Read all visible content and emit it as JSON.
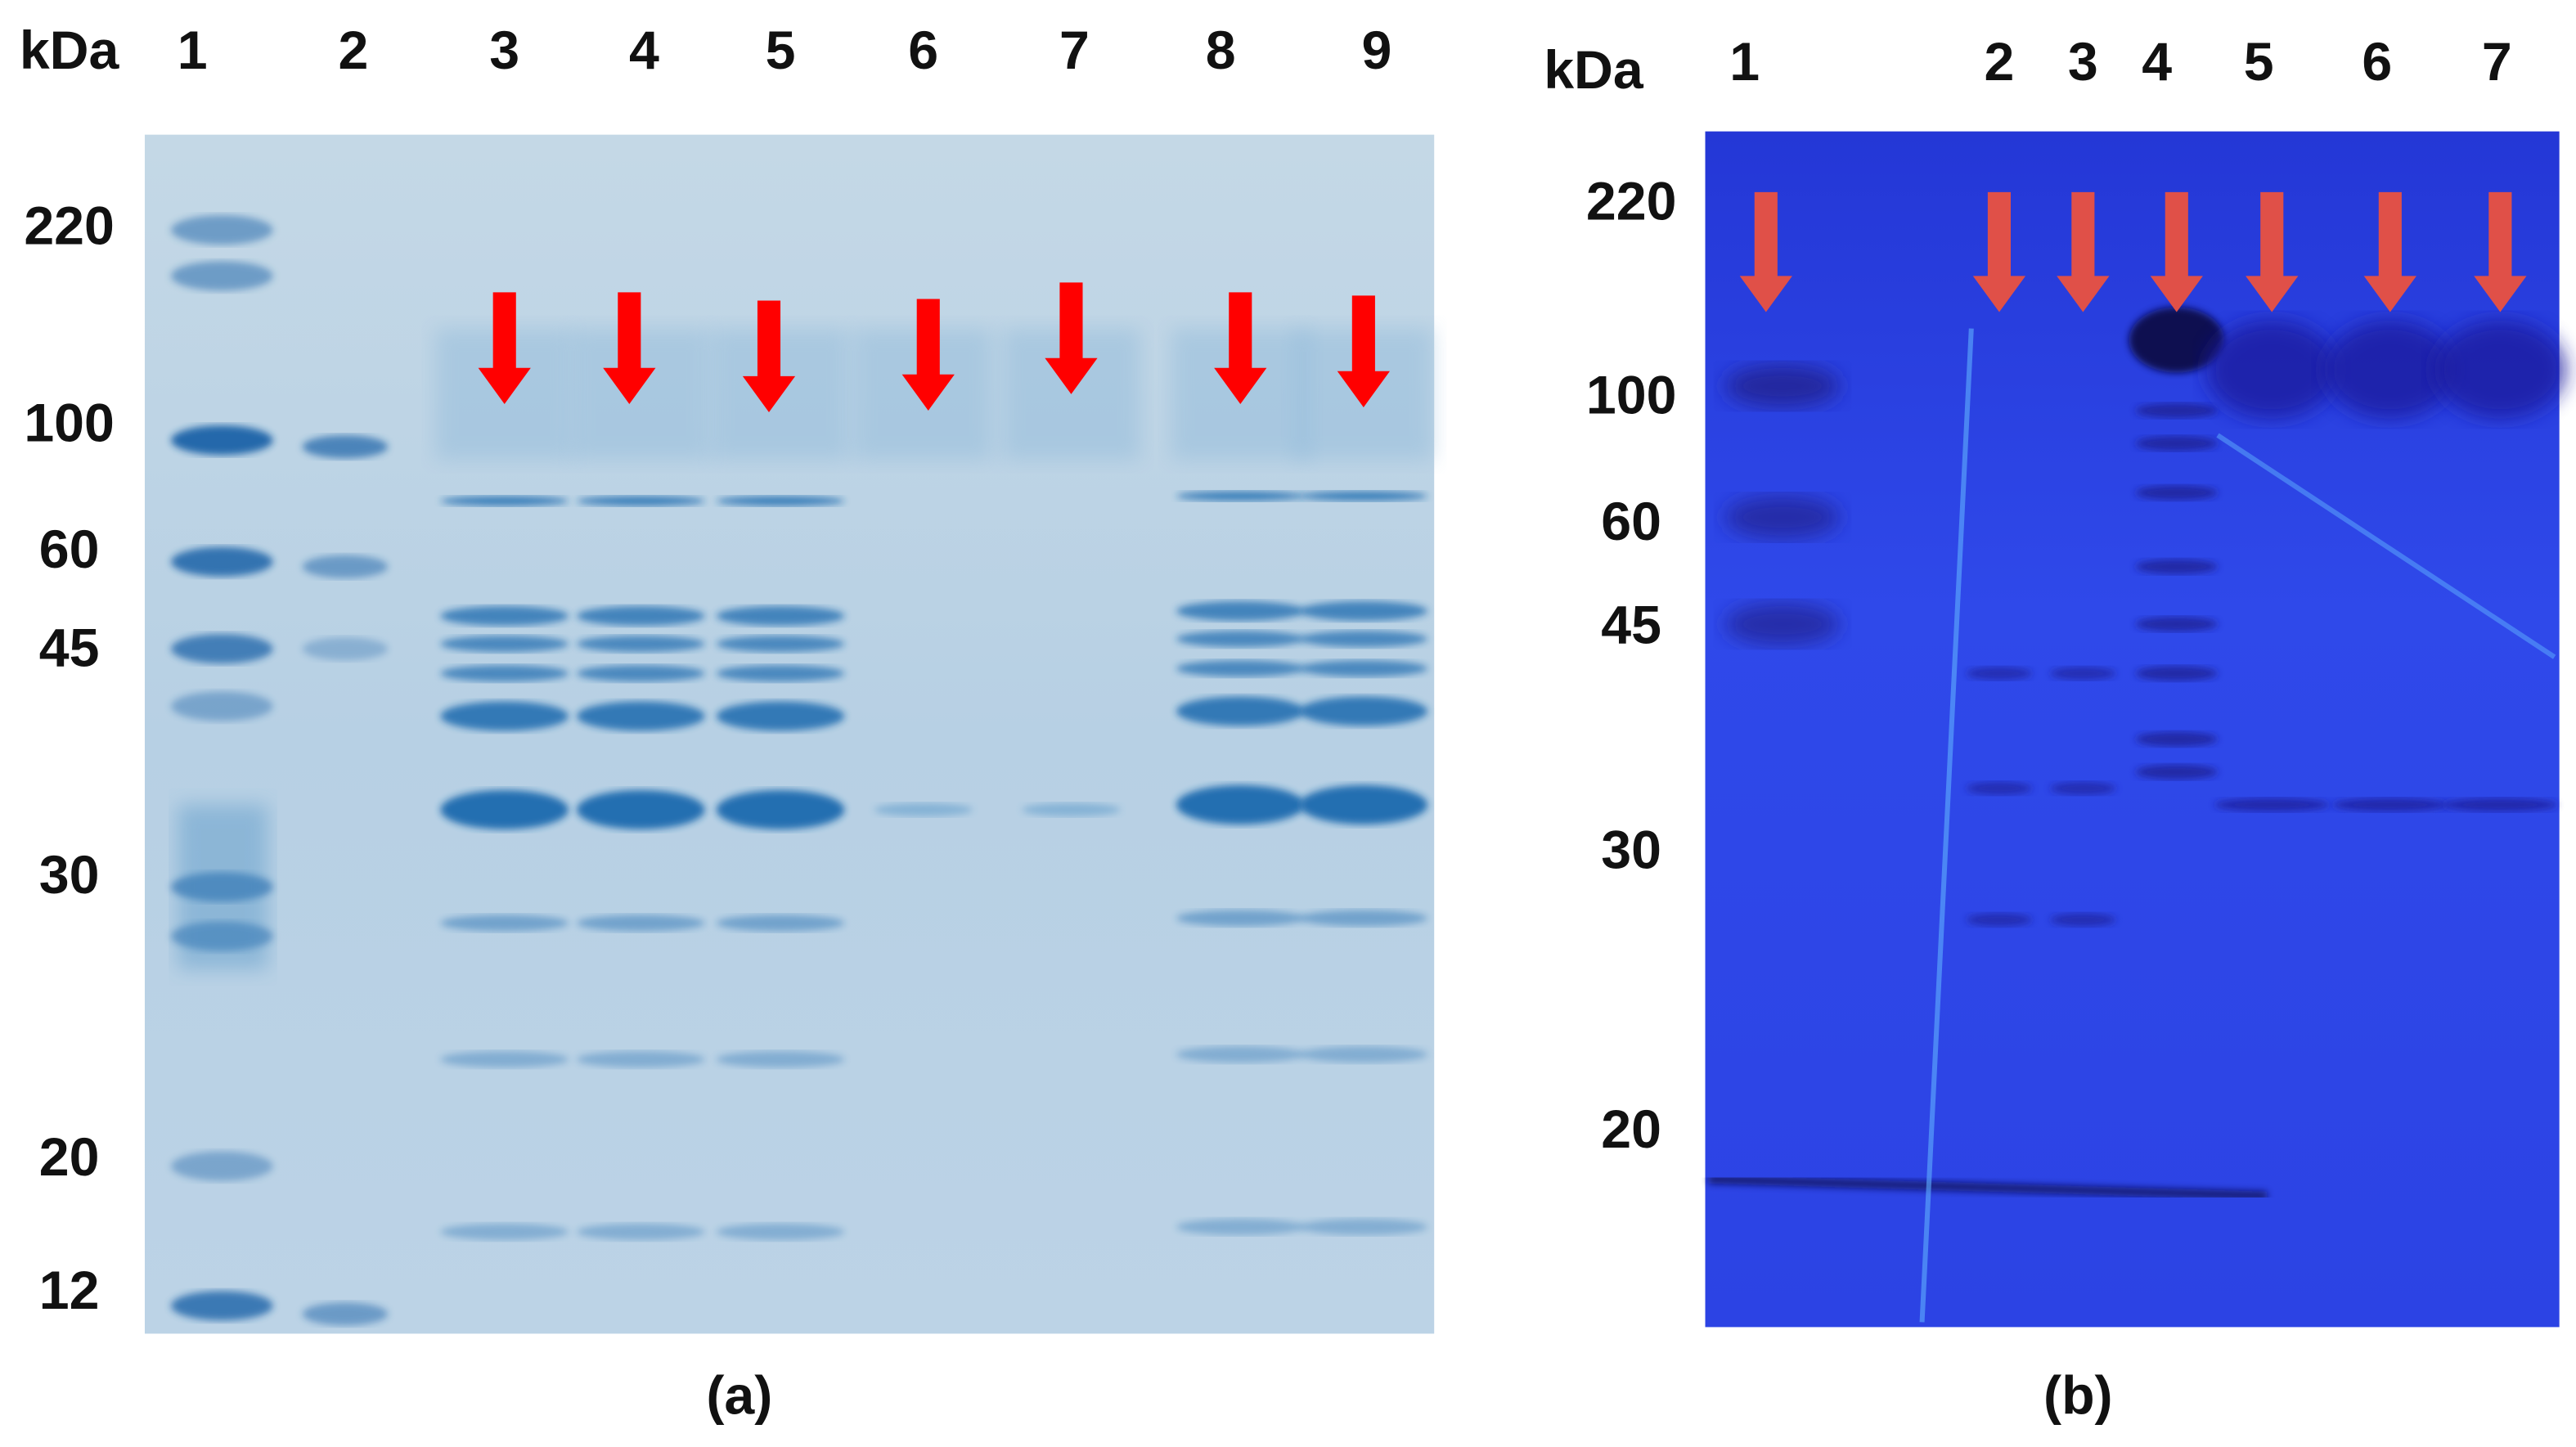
{
  "panels": [
    {
      "unit_label": "kDa",
      "lanes": [
        "1",
        "2",
        "3",
        "4",
        "5",
        "6",
        "7",
        "8",
        "9"
      ],
      "markers": [
        "220",
        "100",
        "60",
        "45",
        "30",
        "20",
        "12"
      ],
      "caption": "(a)"
    },
    {
      "unit_label": "kDa",
      "lanes": [
        "1",
        "2",
        "3",
        "4",
        "5",
        "6",
        "7"
      ],
      "markers": [
        "220",
        "100",
        "60",
        "45",
        "30",
        "20"
      ],
      "caption": "(b)"
    }
  ]
}
